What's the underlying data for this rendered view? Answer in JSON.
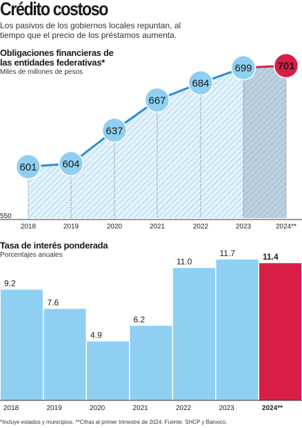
{
  "header": {
    "title": "Crédito costoso",
    "subtitle": "Los pasivos de los gobiernos locales repuntan, al tiempo que el precio de los préstamos aumenta."
  },
  "colors": {
    "series": "#8fd0f2",
    "line": "#2b8fd6",
    "highlight": "#d81e45",
    "highlight_band": "#b8cfdf",
    "axis": "#333333"
  },
  "chart_data": [
    {
      "type": "line",
      "title": "Obligaciones financieras de las entidades federativas*",
      "subtitle": "Miles de millones de pesos",
      "x": [
        "2018",
        "2019",
        "2020",
        "2021",
        "2022",
        "2023",
        "2024**"
      ],
      "values": [
        601,
        604,
        637,
        667,
        684,
        699,
        701
      ],
      "data_labels": [
        "601",
        "604",
        "637",
        "667",
        "684",
        "699",
        "701"
      ],
      "highlight_index": 6,
      "ylim": [
        550,
        710
      ],
      "y_axis_label": "550",
      "fill": "area-hatched",
      "grid": false,
      "legend": "none"
    },
    {
      "type": "bar",
      "title": "Tasa de interés ponderada",
      "subtitle": "Porcentajes anuales",
      "categories": [
        "2018",
        "2019",
        "2020",
        "2021",
        "2022",
        "2023",
        "2024**"
      ],
      "values": [
        9.2,
        7.6,
        4.9,
        6.2,
        11.0,
        11.7,
        11.4
      ],
      "data_labels": [
        "9.2",
        "7.6",
        "4.9",
        "6.2",
        "11.0",
        "11.7",
        "11.4"
      ],
      "highlight_index": 6,
      "ylim": [
        0,
        12
      ],
      "grid": false,
      "legend": "none"
    }
  ],
  "footnote": "*Incluye estados y municipios. **Cifras al primer trimestre de 2024. Fuente: SHCP y Banxico."
}
